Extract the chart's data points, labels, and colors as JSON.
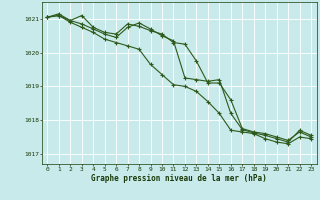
{
  "background_color": "#c8eaea",
  "grid_color": "#ffffff",
  "line_color": "#2d5a1b",
  "title": "Graphe pression niveau de la mer (hPa)",
  "title_color": "#1a3a0a",
  "xlim": [
    -0.5,
    23.5
  ],
  "ylim": [
    1016.7,
    1021.5
  ],
  "yticks": [
    1017,
    1018,
    1019,
    1020,
    1021
  ],
  "xticks": [
    0,
    1,
    2,
    3,
    4,
    5,
    6,
    7,
    8,
    9,
    10,
    11,
    12,
    13,
    14,
    15,
    16,
    17,
    18,
    19,
    20,
    21,
    22,
    23
  ],
  "series": [
    {
      "x": [
        0,
        1,
        2,
        3,
        4,
        5,
        6,
        7,
        8,
        9,
        10,
        11,
        12,
        13,
        14,
        15,
        16,
        17,
        18,
        19,
        20,
        21,
        22,
        23
      ],
      "y": [
        1021.05,
        1021.15,
        1020.95,
        1021.1,
        1020.75,
        1020.6,
        1020.55,
        1020.85,
        1020.78,
        1020.65,
        1020.55,
        1020.3,
        1020.25,
        1019.75,
        1019.1,
        1019.1,
        1018.6,
        1017.75,
        1017.65,
        1017.6,
        1017.5,
        1017.4,
        1017.65,
        1017.5
      ]
    },
    {
      "x": [
        0,
        1,
        2,
        3,
        4,
        5,
        6,
        7,
        8,
        9,
        10,
        11,
        12,
        13,
        14,
        15,
        16,
        17,
        18,
        19,
        20,
        21,
        22,
        23
      ],
      "y": [
        1021.05,
        1021.1,
        1020.95,
        1020.85,
        1020.7,
        1020.55,
        1020.45,
        1020.75,
        1020.88,
        1020.7,
        1020.5,
        1020.35,
        1019.25,
        1019.2,
        1019.15,
        1019.2,
        1018.2,
        1017.72,
        1017.62,
        1017.55,
        1017.45,
        1017.35,
        1017.7,
        1017.55
      ]
    },
    {
      "x": [
        0,
        1,
        2,
        3,
        4,
        5,
        6,
        7,
        8,
        9,
        10,
        11,
        12,
        13,
        14,
        15,
        16,
        17,
        18,
        19,
        20,
        21,
        22,
        23
      ],
      "y": [
        1021.05,
        1021.1,
        1020.9,
        1020.75,
        1020.6,
        1020.4,
        1020.3,
        1020.2,
        1020.1,
        1019.65,
        1019.35,
        1019.05,
        1019.0,
        1018.85,
        1018.55,
        1018.2,
        1017.7,
        1017.65,
        1017.6,
        1017.45,
        1017.35,
        1017.3,
        1017.5,
        1017.45
      ]
    }
  ]
}
